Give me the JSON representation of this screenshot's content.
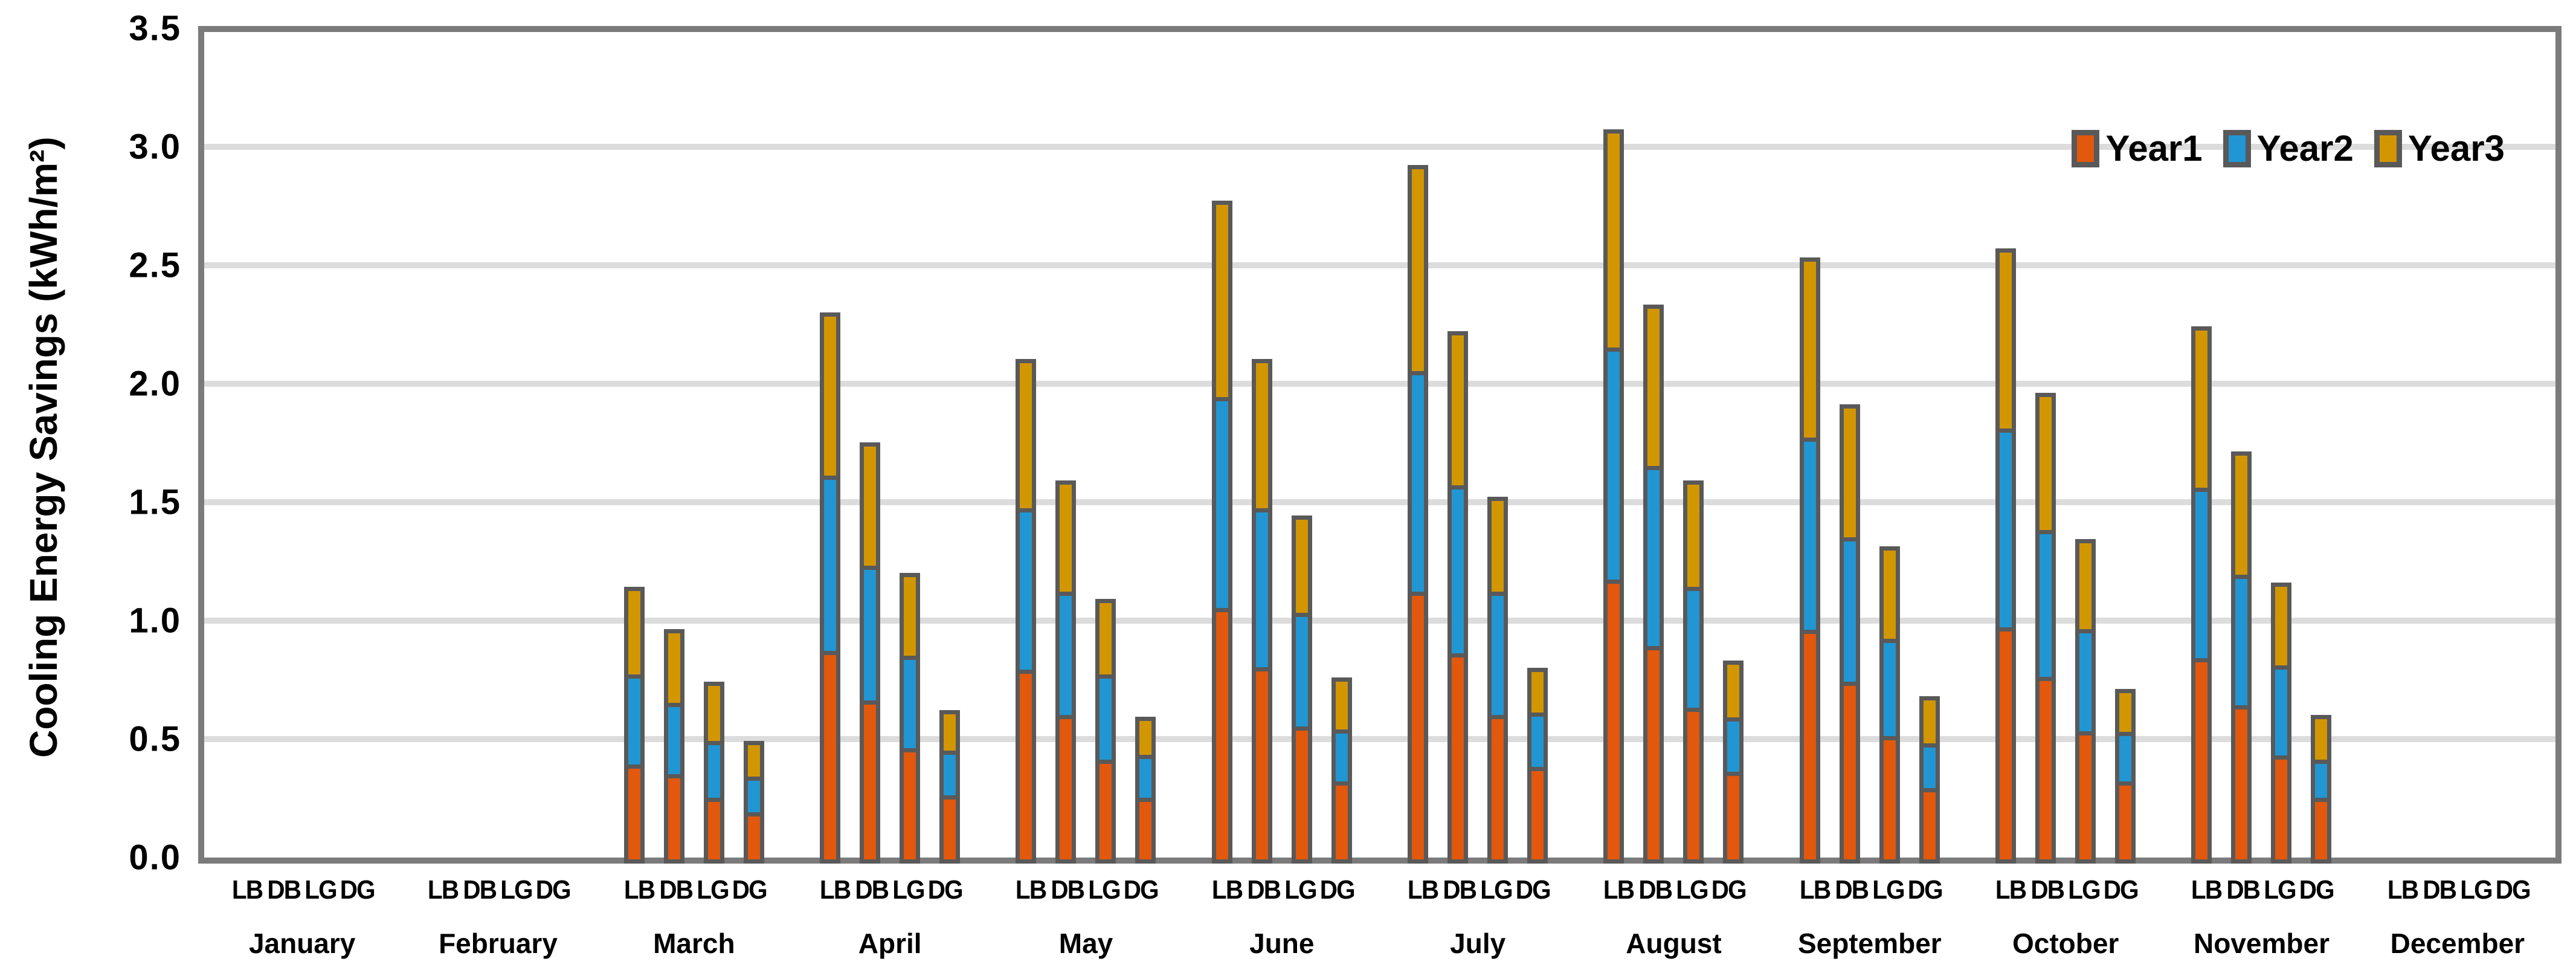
{
  "y_axis": {
    "title": "Cooling Energy Savings (kWh/m²)",
    "ticks": [
      "0.0",
      "0.5",
      "1.0",
      "1.5",
      "2.0",
      "2.5",
      "3.0",
      "3.5"
    ]
  },
  "colors": {
    "year1": "#E2580C",
    "year2": "#2196D3",
    "year3": "#D29600",
    "bar_border": "#595959",
    "gridline": "#DCDCDC",
    "plot_border": "#7B7B7B",
    "text": "#000000",
    "background": "#FFFFFF"
  },
  "chart_data": {
    "type": "bar",
    "stacked": true,
    "title": "",
    "xlabel": "",
    "ylabel": "Cooling Energy Savings (kWh/m²)",
    "ylim": [
      0,
      3.5
    ],
    "ytick_step": 0.5,
    "grid": "horizontal",
    "legend_position": "top-right-inside",
    "categories": [
      "January",
      "February",
      "March",
      "April",
      "May",
      "June",
      "July",
      "August",
      "September",
      "October",
      "November",
      "December"
    ],
    "bar_labels": [
      "LB",
      "DB",
      "LG",
      "DG"
    ],
    "series": [
      {
        "name": "Year1",
        "color": "#E2580C"
      },
      {
        "name": "Year2",
        "color": "#2196D3"
      },
      {
        "name": "Year3",
        "color": "#D29600"
      }
    ],
    "values_by_month": [
      {
        "month": "January",
        "bars": [
          [
            0,
            0,
            0
          ],
          [
            0,
            0,
            0
          ],
          [
            0,
            0,
            0
          ],
          [
            0,
            0,
            0
          ]
        ]
      },
      {
        "month": "February",
        "bars": [
          [
            0,
            0,
            0
          ],
          [
            0,
            0,
            0
          ],
          [
            0,
            0,
            0
          ],
          [
            0,
            0,
            0
          ]
        ]
      },
      {
        "month": "March",
        "bars": [
          [
            0.4,
            0.38,
            0.37
          ],
          [
            0.36,
            0.3,
            0.31
          ],
          [
            0.26,
            0.24,
            0.25
          ],
          [
            0.2,
            0.15,
            0.15
          ]
        ]
      },
      {
        "month": "April",
        "bars": [
          [
            0.88,
            0.74,
            0.69
          ],
          [
            0.67,
            0.57,
            0.52
          ],
          [
            0.47,
            0.39,
            0.35
          ],
          [
            0.27,
            0.19,
            0.17
          ]
        ]
      },
      {
        "month": "May",
        "bars": [
          [
            0.8,
            0.68,
            0.63
          ],
          [
            0.61,
            0.52,
            0.47
          ],
          [
            0.42,
            0.36,
            0.32
          ],
          [
            0.26,
            0.18,
            0.16
          ]
        ]
      },
      {
        "month": "June",
        "bars": [
          [
            1.06,
            0.89,
            0.83
          ],
          [
            0.81,
            0.67,
            0.63
          ],
          [
            0.56,
            0.48,
            0.41
          ],
          [
            0.33,
            0.22,
            0.22
          ]
        ]
      },
      {
        "month": "July",
        "bars": [
          [
            1.13,
            0.93,
            0.87
          ],
          [
            0.87,
            0.71,
            0.65
          ],
          [
            0.61,
            0.52,
            0.4
          ],
          [
            0.39,
            0.23,
            0.19
          ]
        ]
      },
      {
        "month": "August",
        "bars": [
          [
            1.18,
            0.98,
            0.92
          ],
          [
            0.9,
            0.76,
            0.68
          ],
          [
            0.64,
            0.51,
            0.45
          ],
          [
            0.37,
            0.23,
            0.24
          ]
        ]
      },
      {
        "month": "September",
        "bars": [
          [
            0.97,
            0.81,
            0.76
          ],
          [
            0.75,
            0.61,
            0.56
          ],
          [
            0.52,
            0.41,
            0.39
          ],
          [
            0.3,
            0.19,
            0.2
          ]
        ]
      },
      {
        "month": "October",
        "bars": [
          [
            0.98,
            0.84,
            0.76
          ],
          [
            0.77,
            0.62,
            0.58
          ],
          [
            0.54,
            0.43,
            0.38
          ],
          [
            0.33,
            0.21,
            0.18
          ]
        ]
      },
      {
        "month": "November",
        "bars": [
          [
            0.85,
            0.72,
            0.68
          ],
          [
            0.65,
            0.55,
            0.52
          ],
          [
            0.44,
            0.38,
            0.35
          ],
          [
            0.26,
            0.16,
            0.19
          ]
        ]
      },
      {
        "month": "December",
        "bars": [
          [
            0,
            0,
            0
          ],
          [
            0,
            0,
            0
          ],
          [
            0,
            0,
            0
          ],
          [
            0,
            0,
            0
          ]
        ]
      }
    ]
  }
}
